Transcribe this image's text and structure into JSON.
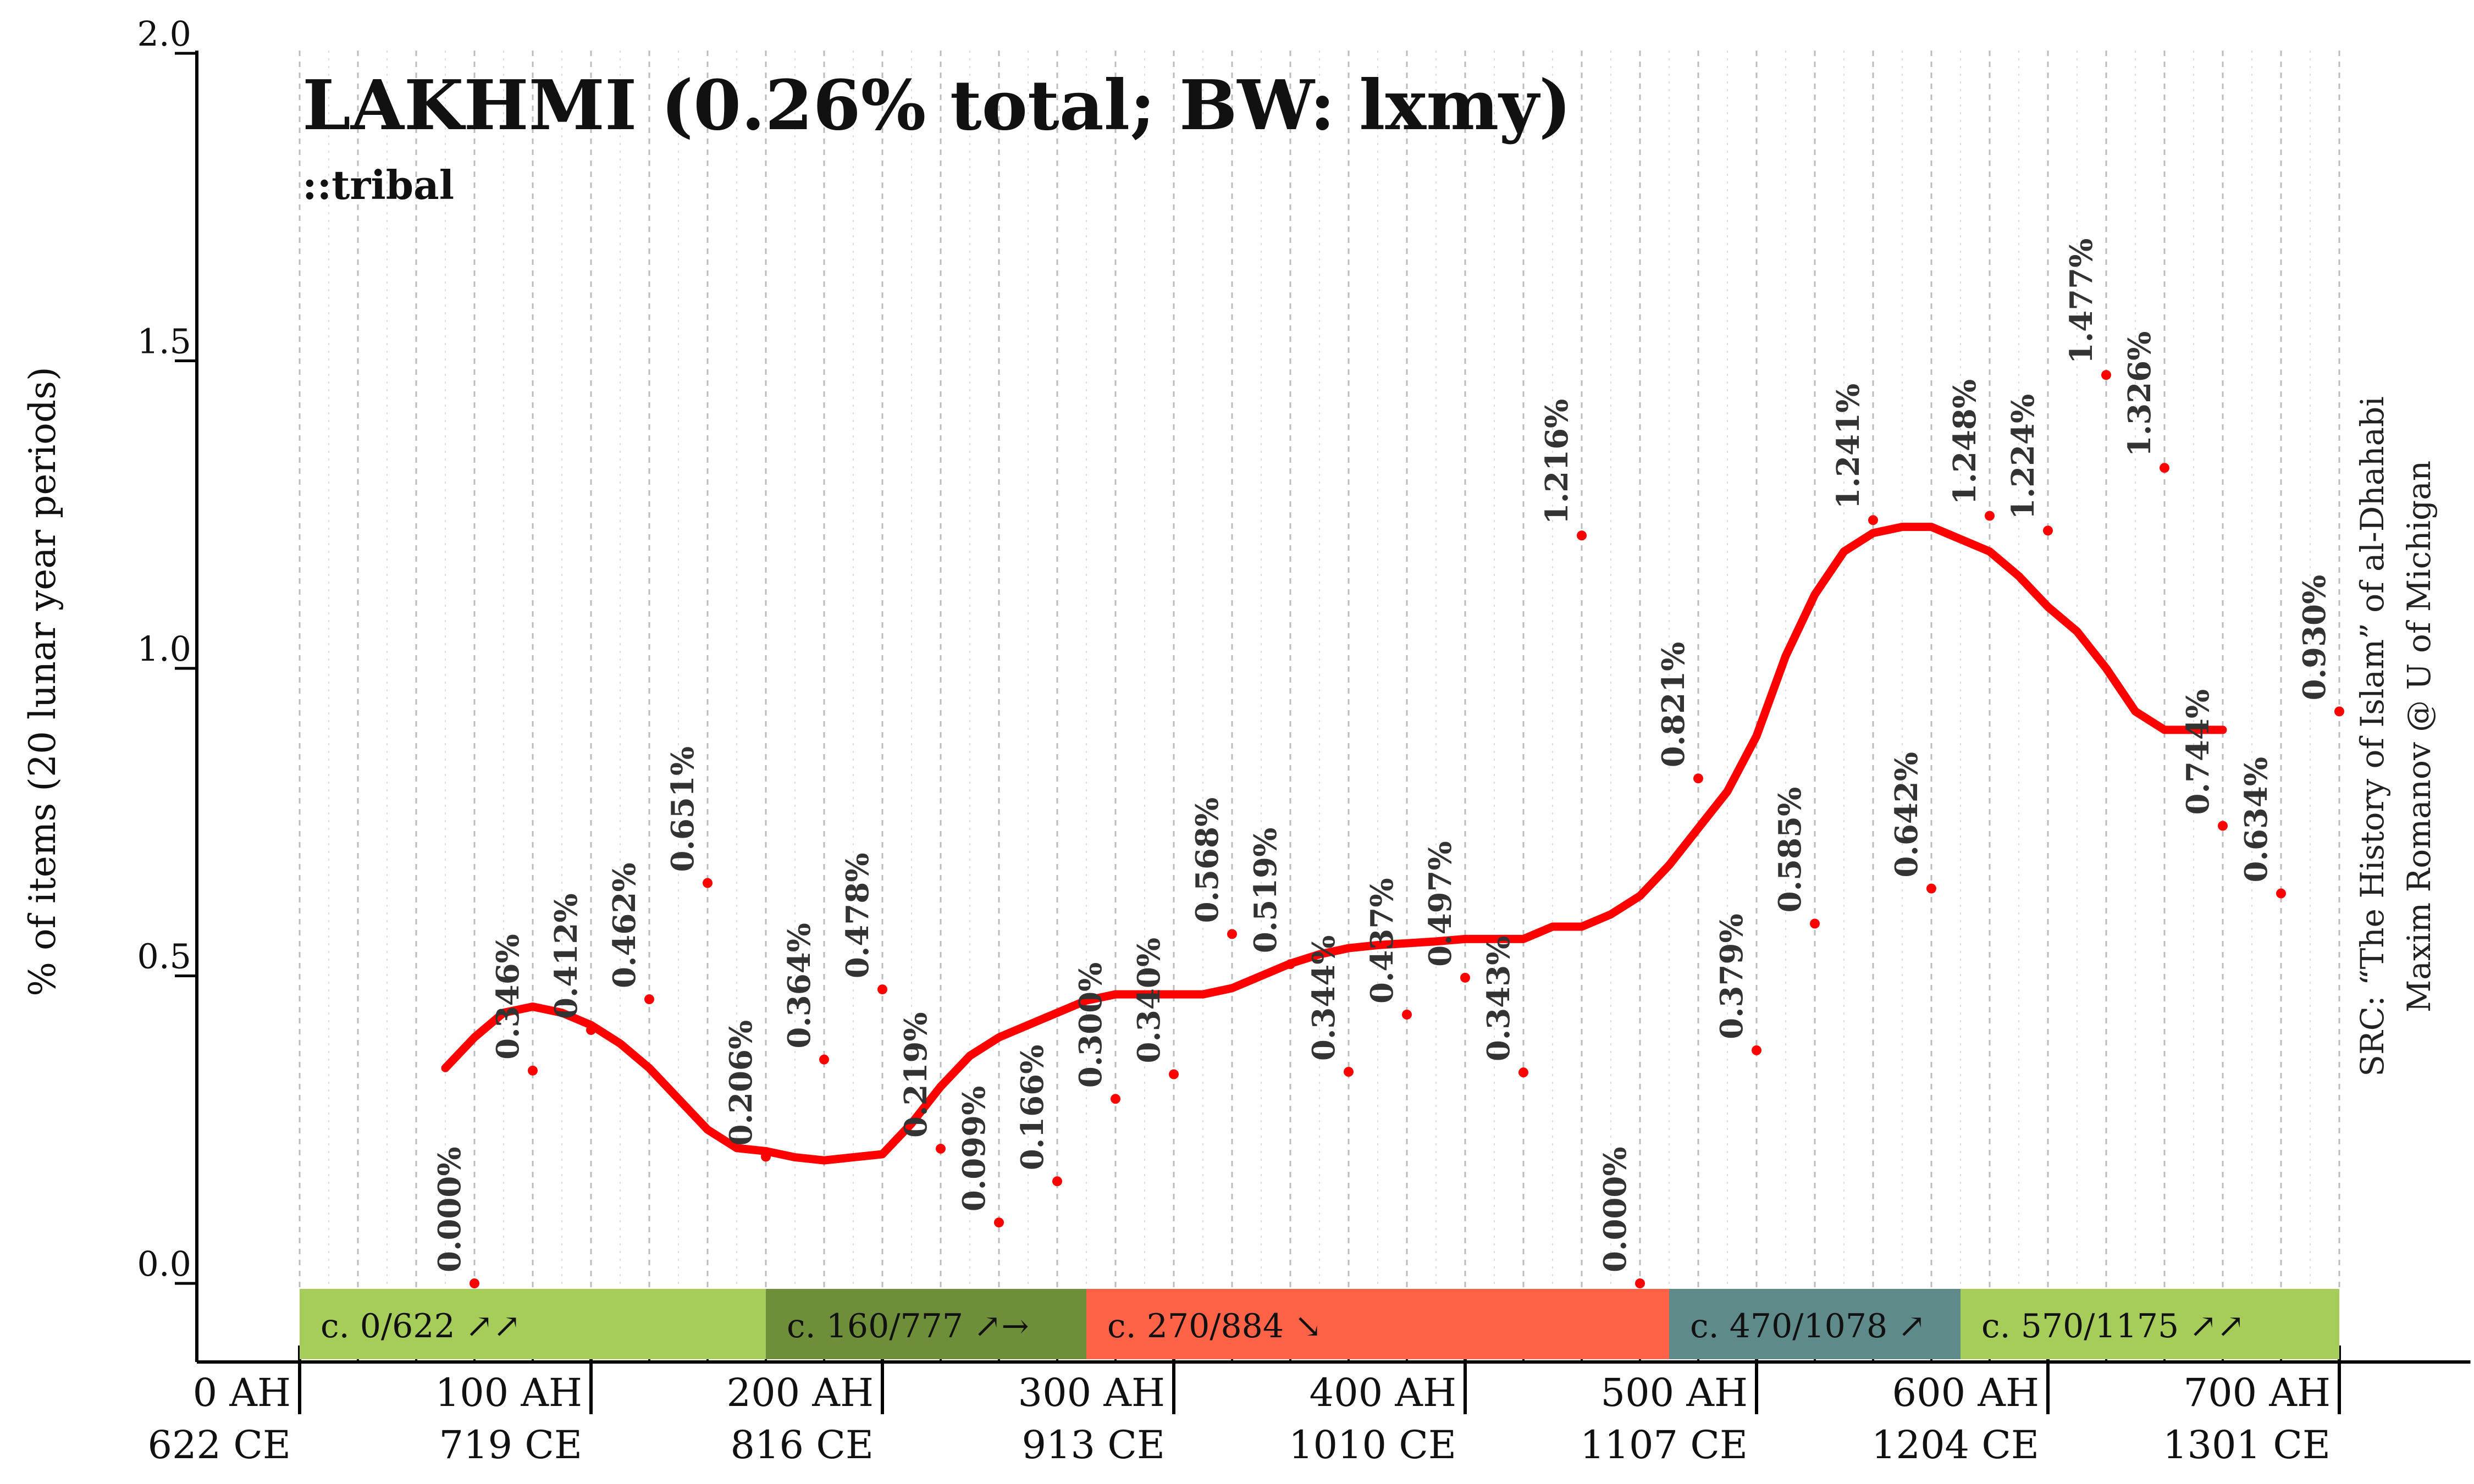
{
  "chart_data": {
    "type": "line",
    "title": "LAKHMI (0.26% total; BW: lxmy)",
    "subtitle": "::tribal",
    "ylabel": "% of items (20 lunar year periods)",
    "ylim": [
      0.0,
      2.0
    ],
    "y_ticks": [
      "0.0",
      "0.5",
      "1.0",
      "1.5",
      "2.0"
    ],
    "x_ticks": [
      {
        "ah": 0,
        "label_ah": "0 AH",
        "label_ce": "622 CE"
      },
      {
        "ah": 100,
        "label_ah": "100 AH",
        "label_ce": "719 CE"
      },
      {
        "ah": 200,
        "label_ah": "200 AH",
        "label_ce": "816 CE"
      },
      {
        "ah": 300,
        "label_ah": "300 AH",
        "label_ce": "913 CE"
      },
      {
        "ah": 400,
        "label_ah": "400 AH",
        "label_ce": "1010 CE"
      },
      {
        "ah": 500,
        "label_ah": "500 AH",
        "label_ce": "1107 CE"
      },
      {
        "ah": 600,
        "label_ah": "600 AH",
        "label_ce": "1204 CE"
      },
      {
        "ah": 700,
        "label_ah": "700 AH",
        "label_ce": "1301 CE"
      }
    ],
    "points": [
      {
        "x": 60,
        "y": 0.0,
        "label": "0.000%"
      },
      {
        "x": 80,
        "y": 0.346,
        "label": "0.346%"
      },
      {
        "x": 100,
        "y": 0.412,
        "label": "0.412%"
      },
      {
        "x": 120,
        "y": 0.462,
        "label": "0.462%"
      },
      {
        "x": 140,
        "y": 0.651,
        "label": "0.651%"
      },
      {
        "x": 160,
        "y": 0.206,
        "label": "0.206%"
      },
      {
        "x": 180,
        "y": 0.364,
        "label": "0.364%"
      },
      {
        "x": 200,
        "y": 0.478,
        "label": "0.478%"
      },
      {
        "x": 220,
        "y": 0.219,
        "label": "0.219%"
      },
      {
        "x": 240,
        "y": 0.099,
        "label": "0.099%"
      },
      {
        "x": 260,
        "y": 0.166,
        "label": "0.166%"
      },
      {
        "x": 280,
        "y": 0.3,
        "label": "0.300%"
      },
      {
        "x": 300,
        "y": 0.34,
        "label": "0.340%"
      },
      {
        "x": 320,
        "y": 0.568,
        "label": "0.568%"
      },
      {
        "x": 340,
        "y": 0.519,
        "label": "0.519%"
      },
      {
        "x": 360,
        "y": 0.344,
        "label": "0.344%"
      },
      {
        "x": 380,
        "y": 0.437,
        "label": "0.437%"
      },
      {
        "x": 400,
        "y": 0.497,
        "label": "0.497%"
      },
      {
        "x": 420,
        "y": 0.343,
        "label": "0.343%"
      },
      {
        "x": 440,
        "y": 1.216,
        "label": "1.216%"
      },
      {
        "x": 460,
        "y": 0.0,
        "label": "0.000%"
      },
      {
        "x": 480,
        "y": 0.821,
        "label": "0.821%"
      },
      {
        "x": 500,
        "y": 0.379,
        "label": "0.379%"
      },
      {
        "x": 520,
        "y": 0.585,
        "label": "0.585%"
      },
      {
        "x": 540,
        "y": 1.241,
        "label": "1.241%"
      },
      {
        "x": 560,
        "y": 0.642,
        "label": "0.642%"
      },
      {
        "x": 580,
        "y": 1.248,
        "label": "1.248%"
      },
      {
        "x": 600,
        "y": 1.224,
        "label": "1.224%"
      },
      {
        "x": 620,
        "y": 1.477,
        "label": "1.477%"
      },
      {
        "x": 640,
        "y": 1.326,
        "label": "1.326%"
      },
      {
        "x": 660,
        "y": 0.744,
        "label": "0.744%"
      },
      {
        "x": 680,
        "y": 0.634,
        "label": "0.634%"
      },
      {
        "x": 700,
        "y": 0.93,
        "label": "0.930%"
      }
    ],
    "trend": {
      "x": [
        50,
        60,
        70,
        80,
        90,
        100,
        110,
        120,
        130,
        140,
        150,
        160,
        170,
        180,
        190,
        200,
        210,
        220,
        230,
        240,
        250,
        260,
        270,
        280,
        290,
        300,
        310,
        320,
        330,
        340,
        350,
        360,
        370,
        380,
        390,
        400,
        410,
        420,
        430,
        440,
        450,
        460,
        470,
        480,
        490,
        500,
        510,
        520,
        530,
        540,
        550,
        560,
        570,
        580,
        590,
        600,
        610,
        620,
        630,
        640,
        650,
        660
      ],
      "y": [
        0.35,
        0.4,
        0.44,
        0.45,
        0.44,
        0.42,
        0.39,
        0.35,
        0.3,
        0.25,
        0.22,
        0.215,
        0.205,
        0.2,
        0.205,
        0.21,
        0.26,
        0.32,
        0.37,
        0.4,
        0.42,
        0.44,
        0.46,
        0.47,
        0.47,
        0.47,
        0.47,
        0.48,
        0.5,
        0.52,
        0.535,
        0.545,
        0.55,
        0.553,
        0.556,
        0.56,
        0.56,
        0.56,
        0.58,
        0.58,
        0.6,
        0.63,
        0.68,
        0.74,
        0.8,
        0.89,
        1.02,
        1.12,
        1.19,
        1.22,
        1.23,
        1.23,
        1.21,
        1.19,
        1.15,
        1.1,
        1.06,
        1.0,
        0.93,
        0.9,
        0.9,
        0.9
      ],
      "color": "#ff0000"
    },
    "periods": [
      {
        "label": "c. 0/622 ↗↗",
        "start": 0,
        "end": 160,
        "color": "#a6cc5a"
      },
      {
        "label": "c. 160/777 ↗→",
        "start": 160,
        "end": 270,
        "color": "#6f8e3a"
      },
      {
        "label": "c. 270/884 ↘",
        "start": 270,
        "end": 470,
        "color": "#ff6347"
      },
      {
        "label": "c. 470/1078 ↗",
        "start": 470,
        "end": 570,
        "color": "#5f8a8a"
      },
      {
        "label": "c. 570/1175 ↗↗",
        "start": 570,
        "end": 700,
        "color": "#a6cc5a"
      }
    ],
    "source": {
      "line1": "SRC: “The History of Islam” of al-Dhahabi",
      "line2": "Maxim Romanov @ U of Michigan"
    },
    "grid": true,
    "point_color": "#ff0000"
  }
}
